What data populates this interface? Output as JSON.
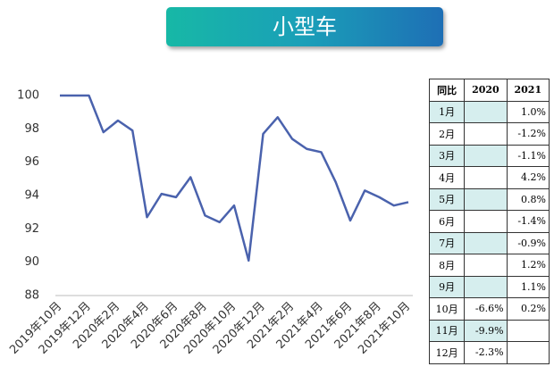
{
  "chart_data": {
    "type": "line",
    "title": "小型车",
    "categories": [
      "2019年10月",
      null,
      "2019年12月",
      null,
      "2020年2月",
      null,
      "2020年4月",
      null,
      "2020年6月",
      null,
      "2020年8月",
      null,
      "2020年10月",
      null,
      "2020年12月",
      null,
      "2021年2月",
      null,
      "2021年4月",
      null,
      "2021年6月",
      null,
      "2021年8月",
      null,
      "2021年10月"
    ],
    "series": [
      {
        "color": "#4a62ad",
        "values": [
          100,
          100,
          100,
          97.8,
          98.5,
          97.9,
          92.7,
          94.1,
          93.9,
          95.1,
          92.8,
          92.4,
          93.4,
          90.1,
          97.7,
          98.7,
          97.4,
          96.8,
          96.6,
          94.8,
          92.5,
          94.3,
          93.9,
          93.4,
          93.6
        ]
      }
    ],
    "ylim": [
      88,
      100
    ],
    "yticks": [
      88,
      90,
      92,
      94,
      96,
      98,
      100
    ],
    "grid": false
  },
  "table": {
    "header": [
      "同比",
      "2020",
      "2021"
    ],
    "rows": [
      [
        "1月",
        null,
        "1.0%"
      ],
      [
        "2月",
        null,
        "-1.2%"
      ],
      [
        "3月",
        null,
        "-1.1%"
      ],
      [
        "4月",
        null,
        "4.2%"
      ],
      [
        "5月",
        null,
        "0.8%"
      ],
      [
        "6月",
        null,
        "-1.4%"
      ],
      [
        "7月",
        null,
        "-0.9%"
      ],
      [
        "8月",
        null,
        "1.2%"
      ],
      [
        "9月",
        null,
        "1.1%"
      ],
      [
        "10月",
        "-6.6%",
        "0.2%"
      ],
      [
        "11月",
        "-9.9%",
        null
      ],
      [
        "12月",
        "-2.3%",
        null
      ]
    ]
  }
}
